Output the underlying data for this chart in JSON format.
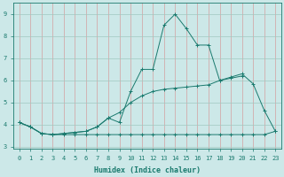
{
  "xlabel": "Humidex (Indice chaleur)",
  "background_color": "#cce8e8",
  "line_color": "#1a7a6e",
  "x_values": [
    0,
    1,
    2,
    3,
    4,
    5,
    6,
    7,
    8,
    9,
    10,
    11,
    12,
    13,
    14,
    15,
    16,
    17,
    18,
    19,
    20,
    21,
    22,
    23
  ],
  "line_peak_y": [
    4.1,
    3.9,
    3.6,
    3.55,
    3.6,
    3.65,
    3.7,
    3.9,
    4.3,
    4.1,
    5.5,
    6.5,
    6.5,
    8.5,
    9.0,
    8.35,
    7.6,
    7.6,
    6.0,
    6.15,
    6.3,
    5.85,
    4.65,
    3.7
  ],
  "line_diag_y": [
    4.1,
    3.9,
    3.6,
    3.55,
    3.6,
    3.65,
    3.7,
    3.9,
    4.3,
    4.55,
    5.0,
    5.3,
    5.5,
    5.6,
    5.65,
    5.7,
    5.75,
    5.8,
    6.0,
    6.1,
    6.2,
    null,
    null,
    null
  ],
  "line_flat_y": [
    4.1,
    3.9,
    3.6,
    3.55,
    3.55,
    3.55,
    3.55,
    3.55,
    3.55,
    3.55,
    3.55,
    3.55,
    3.55,
    3.55,
    3.55,
    3.55,
    3.55,
    3.55,
    3.55,
    3.55,
    3.55,
    3.55,
    3.55,
    3.7
  ],
  "ylim": [
    2.9,
    9.5
  ],
  "xlim": [
    -0.5,
    23.5
  ],
  "yticks": [
    3,
    4,
    5,
    6,
    7,
    8,
    9
  ],
  "xticks": [
    0,
    1,
    2,
    3,
    4,
    5,
    6,
    7,
    8,
    9,
    10,
    11,
    12,
    13,
    14,
    15,
    16,
    17,
    18,
    19,
    20,
    21,
    22,
    23
  ],
  "xlabel_fontsize": 6,
  "tick_fontsize": 5,
  "grid_x_color": "#d4a0a0",
  "grid_y_color": "#a0c8c0"
}
